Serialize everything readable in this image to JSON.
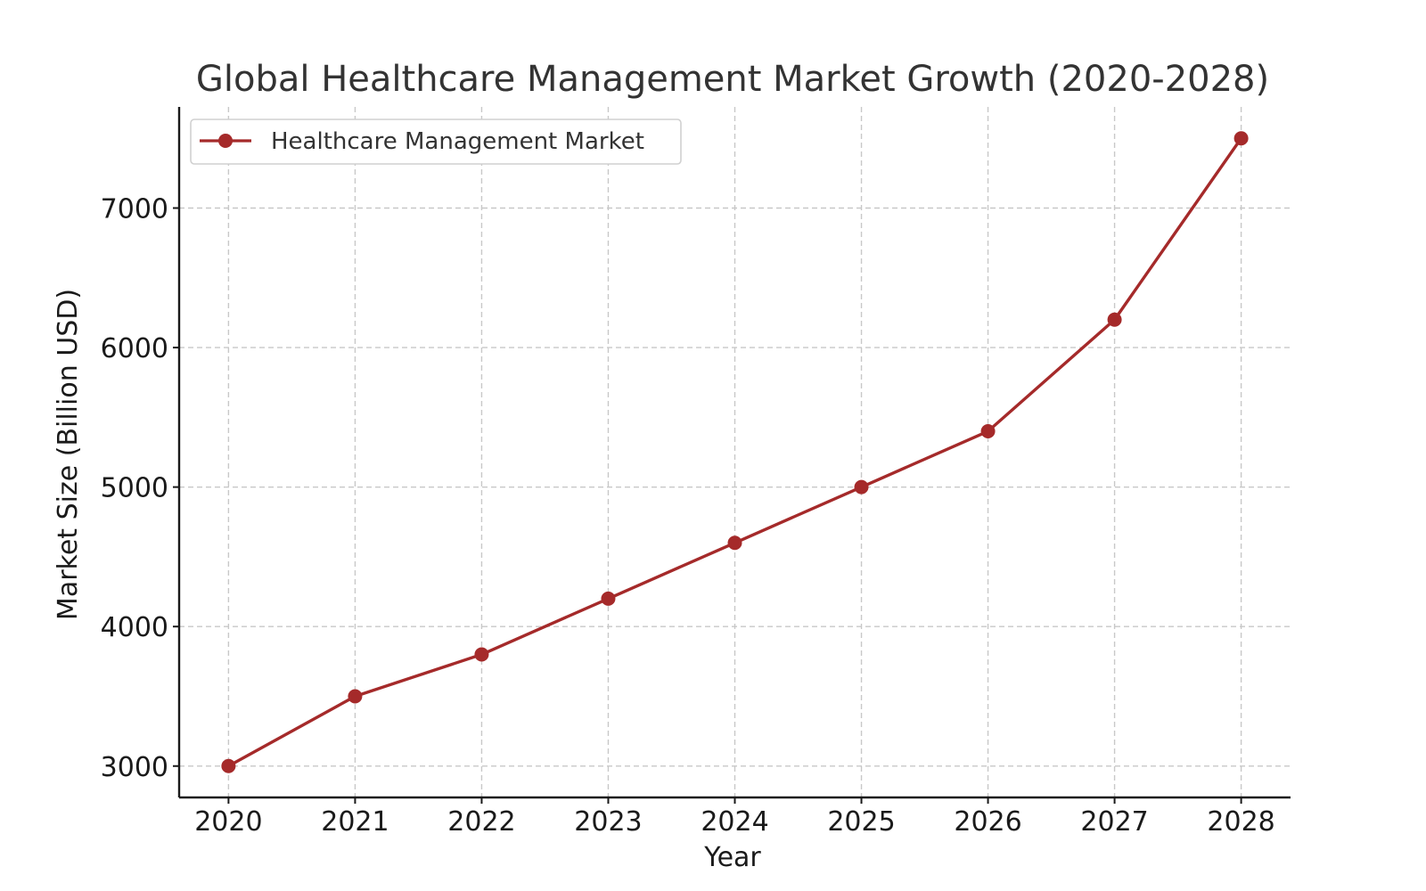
{
  "chart_data": {
    "type": "line",
    "title": "Global Healthcare Management Market Growth (2020-2028)",
    "xlabel": "Year",
    "ylabel": "Market Size (Billion USD)",
    "x": [
      2020,
      2021,
      2022,
      2023,
      2024,
      2025,
      2026,
      2027,
      2028
    ],
    "series": [
      {
        "name": "Healthcare Management Market",
        "values": [
          3000,
          3500,
          3800,
          4200,
          4600,
          5000,
          5400,
          6200,
          7500
        ],
        "color": "#a52a2a",
        "marker": "circle"
      }
    ],
    "xticks": [
      "2020",
      "2021",
      "2022",
      "2023",
      "2024",
      "2025",
      "2026",
      "2027",
      "2028"
    ],
    "yticks": [
      "3000",
      "4000",
      "5000",
      "6000",
      "7000"
    ],
    "ytick_values": [
      3000,
      4000,
      5000,
      6000,
      7000
    ],
    "xlim": [
      2019.61,
      2028.39
    ],
    "ylim": [
      2775,
      7725
    ],
    "grid": true,
    "legend_position": "upper-left"
  }
}
